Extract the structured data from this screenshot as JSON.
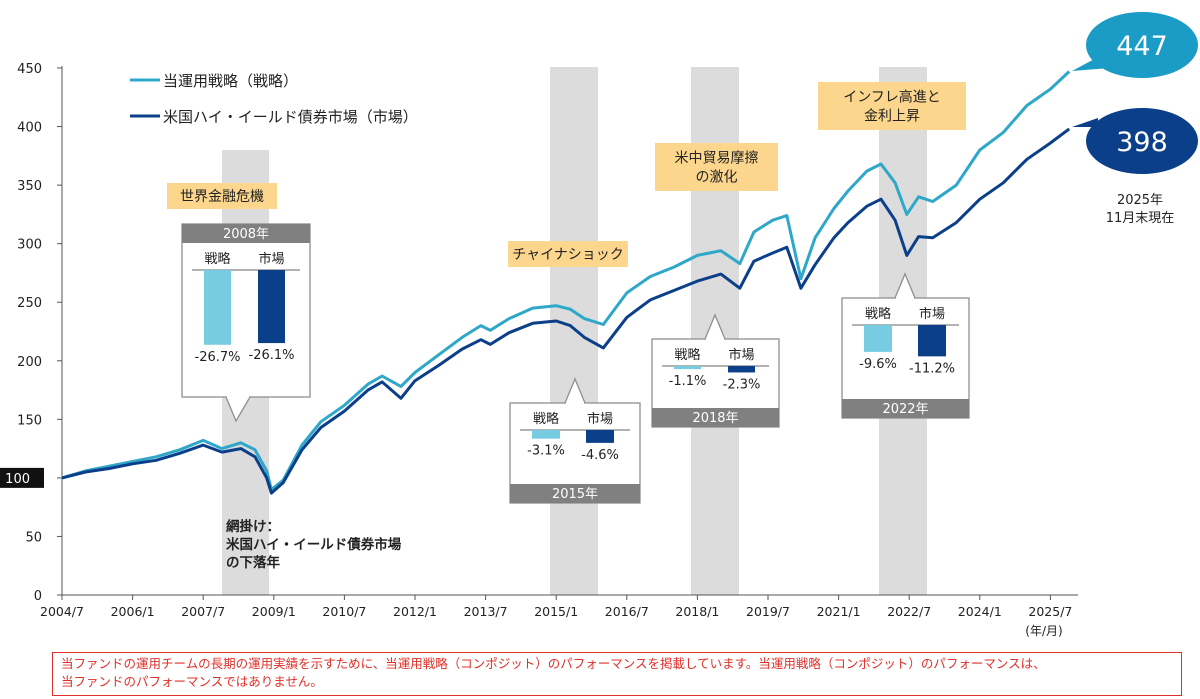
{
  "chart_data": {
    "type": "line",
    "ylim": [
      0,
      450
    ],
    "yticks": [
      0,
      50,
      100,
      150,
      200,
      250,
      300,
      350,
      400,
      450
    ],
    "base_label": "100",
    "xticks": [
      "2004/7",
      "2006/1",
      "2007/7",
      "2009/1",
      "2010/7",
      "2012/1",
      "2013/7",
      "2015/1",
      "2016/7",
      "2018/1",
      "2019/7",
      "2021/1",
      "2022/7",
      "2024/1",
      "2025/7"
    ],
    "xunit": "(年/月)",
    "series": [
      {
        "name": "当運用戦略（戦略）",
        "color": "#2ea7c8",
        "end_value": "447",
        "points": [
          [
            2004.5,
            100
          ],
          [
            2005.0,
            106
          ],
          [
            2005.5,
            110
          ],
          [
            2006.0,
            114
          ],
          [
            2006.5,
            118
          ],
          [
            2007.0,
            124
          ],
          [
            2007.5,
            132
          ],
          [
            2007.9,
            125
          ],
          [
            2008.3,
            130
          ],
          [
            2008.6,
            124
          ],
          [
            2008.85,
            106
          ],
          [
            2008.95,
            90
          ],
          [
            2009.2,
            98
          ],
          [
            2009.6,
            128
          ],
          [
            2010.0,
            148
          ],
          [
            2010.5,
            162
          ],
          [
            2011.0,
            180
          ],
          [
            2011.3,
            187
          ],
          [
            2011.7,
            178
          ],
          [
            2012.0,
            190
          ],
          [
            2012.5,
            205
          ],
          [
            2013.0,
            220
          ],
          [
            2013.4,
            230
          ],
          [
            2013.6,
            226
          ],
          [
            2014.0,
            236
          ],
          [
            2014.5,
            245
          ],
          [
            2015.0,
            247
          ],
          [
            2015.3,
            244
          ],
          [
            2015.6,
            236
          ],
          [
            2016.0,
            231
          ],
          [
            2016.5,
            258
          ],
          [
            2017.0,
            272
          ],
          [
            2017.5,
            280
          ],
          [
            2018.0,
            290
          ],
          [
            2018.5,
            294
          ],
          [
            2018.9,
            283
          ],
          [
            2019.2,
            310
          ],
          [
            2019.6,
            320
          ],
          [
            2019.9,
            324
          ],
          [
            2020.2,
            270
          ],
          [
            2020.5,
            305
          ],
          [
            2020.9,
            330
          ],
          [
            2021.2,
            345
          ],
          [
            2021.6,
            362
          ],
          [
            2021.9,
            368
          ],
          [
            2022.2,
            352
          ],
          [
            2022.45,
            325
          ],
          [
            2022.7,
            340
          ],
          [
            2023.0,
            336
          ],
          [
            2023.5,
            350
          ],
          [
            2024.0,
            380
          ],
          [
            2024.5,
            395
          ],
          [
            2025.0,
            418
          ],
          [
            2025.5,
            432
          ],
          [
            2025.9,
            447
          ]
        ]
      },
      {
        "name": "米国ハイ・イールド債券市場（市場）",
        "color": "#0b3f8a",
        "end_value": "398",
        "points": [
          [
            2004.5,
            100
          ],
          [
            2005.0,
            105
          ],
          [
            2005.5,
            108
          ],
          [
            2006.0,
            112
          ],
          [
            2006.5,
            115
          ],
          [
            2007.0,
            121
          ],
          [
            2007.5,
            128
          ],
          [
            2007.9,
            122
          ],
          [
            2008.3,
            125
          ],
          [
            2008.6,
            118
          ],
          [
            2008.85,
            100
          ],
          [
            2008.95,
            87
          ],
          [
            2009.2,
            96
          ],
          [
            2009.6,
            124
          ],
          [
            2010.0,
            143
          ],
          [
            2010.5,
            157
          ],
          [
            2011.0,
            175
          ],
          [
            2011.3,
            182
          ],
          [
            2011.7,
            168
          ],
          [
            2012.0,
            183
          ],
          [
            2012.5,
            196
          ],
          [
            2013.0,
            210
          ],
          [
            2013.4,
            218
          ],
          [
            2013.6,
            214
          ],
          [
            2014.0,
            224
          ],
          [
            2014.5,
            232
          ],
          [
            2015.0,
            234
          ],
          [
            2015.3,
            230
          ],
          [
            2015.6,
            220
          ],
          [
            2016.0,
            211
          ],
          [
            2016.5,
            237
          ],
          [
            2017.0,
            252
          ],
          [
            2017.5,
            260
          ],
          [
            2018.0,
            268
          ],
          [
            2018.5,
            274
          ],
          [
            2018.9,
            262
          ],
          [
            2019.2,
            285
          ],
          [
            2019.6,
            292
          ],
          [
            2019.9,
            297
          ],
          [
            2020.2,
            262
          ],
          [
            2020.5,
            282
          ],
          [
            2020.9,
            305
          ],
          [
            2021.2,
            318
          ],
          [
            2021.6,
            332
          ],
          [
            2021.9,
            338
          ],
          [
            2022.2,
            320
          ],
          [
            2022.45,
            290
          ],
          [
            2022.7,
            306
          ],
          [
            2023.0,
            305
          ],
          [
            2023.5,
            318
          ],
          [
            2024.0,
            338
          ],
          [
            2024.5,
            352
          ],
          [
            2025.0,
            372
          ],
          [
            2025.5,
            386
          ],
          [
            2025.9,
            398
          ]
        ]
      }
    ],
    "shaded_years": [
      "2008",
      "2015",
      "2018",
      "2022"
    ],
    "shaded_note": [
      "網掛け：",
      "米国ハイ・イールド債券市場",
      "の下落年"
    ],
    "as_of": [
      "2025年",
      "11月末現在"
    ],
    "events": [
      {
        "label": [
          "世界金融危機"
        ]
      },
      {
        "label": [
          "チャイナショック"
        ]
      },
      {
        "label": [
          "米中貿易摩擦",
          "の激化"
        ]
      },
      {
        "label": [
          "インフレ高進と",
          "金利上昇"
        ]
      }
    ],
    "annual_returns": [
      {
        "year": "2008年",
        "strategy": -26.7,
        "market": -26.1,
        "strategy_label": "-26.7%",
        "market_label": "-26.1%"
      },
      {
        "year": "2015年",
        "strategy": -3.1,
        "market": -4.6,
        "strategy_label": "-3.1%",
        "market_label": "-4.6%"
      },
      {
        "year": "2018年",
        "strategy": -1.1,
        "market": -2.3,
        "strategy_label": "-1.1%",
        "market_label": "-2.3%"
      },
      {
        "year": "2022年",
        "strategy": -9.6,
        "market": -11.2,
        "strategy_label": "-9.6%",
        "market_label": "-11.2%"
      }
    ],
    "bar_headers": {
      "strategy": "戦略",
      "market": "市場"
    }
  },
  "disclaimer": [
    "当ファンドの運用チームの長期の運用実績を示すために、当運用戦略（コンポジット）のパフォーマンスを掲載しています。当運用戦略（コンポジット）のパフォーマンスは、",
    "当ファンドのパフォーマンスではありません。"
  ]
}
